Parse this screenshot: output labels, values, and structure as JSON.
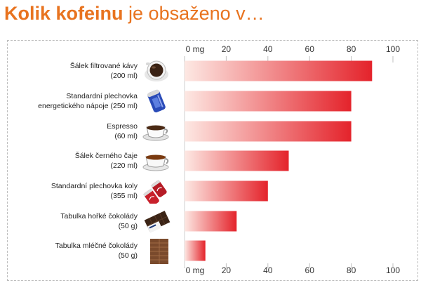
{
  "title": {
    "bold": "Kolik kofeinu",
    "rest": "je obsaženo v…"
  },
  "colors": {
    "accent": "#e8731f",
    "bar_start": "#fde8e3",
    "bar_end": "#e4232b",
    "tick_line": "#bfbfbf"
  },
  "chart_data": {
    "type": "bar",
    "orientation": "horizontal",
    "categories": [
      [
        "Šálek filtrované kávy",
        "(200 ml)"
      ],
      [
        "Standardní plechovka",
        "energetického nápoje (250 ml)"
      ],
      [
        "Espresso",
        "(60 ml)"
      ],
      [
        "Šálek černého čaje",
        "(220 ml)"
      ],
      [
        "Standardní plechovka koly",
        "(355 ml)"
      ],
      [
        "Tabulka hořké čokolády",
        "(50 g)"
      ],
      [
        "Tabulka mléčné čokolády",
        "(50 g)"
      ]
    ],
    "values": [
      90,
      80,
      80,
      50,
      40,
      25,
      10
    ],
    "xlim": [
      0,
      100
    ],
    "ticks": [
      0,
      20,
      40,
      60,
      80,
      100
    ],
    "tick_labels": [
      "0 mg",
      "20",
      "40",
      "60",
      "80",
      "100"
    ],
    "axis_position": "top-and-bottom",
    "grid": false
  },
  "icons": [
    "coffee-cup-icon",
    "energy-drink-can-icon",
    "espresso-cup-icon",
    "tea-cup-icon",
    "cola-cans-icon",
    "dark-chocolate-bar-icon",
    "milk-chocolate-bar-icon"
  ]
}
